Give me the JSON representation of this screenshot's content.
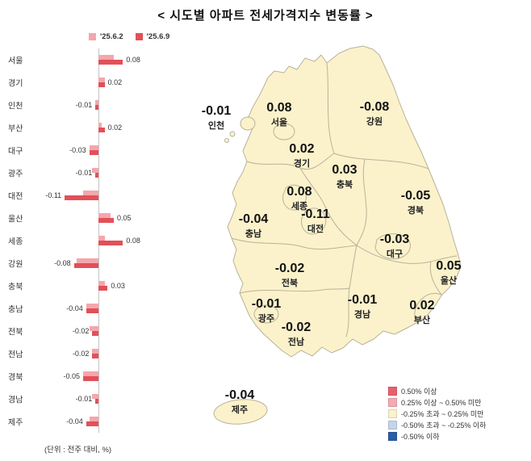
{
  "title": "< 시도별 아파트 전세가격지수 변동률 >",
  "unit_note": "(단위 : 전주 대비, %)",
  "legend": {
    "prev_label": "'25.6.2",
    "curr_label": "'25.6.9"
  },
  "colors": {
    "prev": "#f5a6ab",
    "curr": "#e25058",
    "map_fill": "#fbf2cb",
    "map_stroke": "#b8b299"
  },
  "chart_data": {
    "type": "bar",
    "orientation": "horizontal",
    "unit": "%",
    "title": "시도별 아파트 전세가격지수 변동률",
    "categories": [
      "서울",
      "경기",
      "인천",
      "부산",
      "대구",
      "광주",
      "대전",
      "울산",
      "세종",
      "강원",
      "충북",
      "충남",
      "전북",
      "전남",
      "경북",
      "경남",
      "제주"
    ],
    "series": [
      {
        "name": "'25.6.2",
        "values": [
          0.05,
          0.02,
          -0.01,
          0.01,
          -0.03,
          -0.02,
          -0.05,
          0.04,
          0.02,
          -0.07,
          0.02,
          -0.04,
          -0.03,
          -0.02,
          -0.05,
          -0.02,
          -0.03
        ]
      },
      {
        "name": "'25.6.9",
        "values": [
          0.08,
          0.02,
          -0.01,
          0.02,
          -0.03,
          -0.01,
          -0.11,
          0.05,
          0.08,
          -0.08,
          0.03,
          -0.04,
          -0.02,
          -0.02,
          -0.05,
          -0.01,
          -0.04
        ]
      }
    ],
    "value_labels": [
      "0.08",
      "0.02",
      "-0.01",
      "0.02",
      "-0.03",
      "-0.01",
      "-0.11",
      "0.05",
      "0.08",
      "-0.08",
      "0.03",
      "-0.04",
      "-0.02",
      "-0.02",
      "-0.05",
      "-0.01",
      "-0.04"
    ]
  },
  "map": {
    "regions": [
      {
        "name": "인천",
        "value": "-0.01"
      },
      {
        "name": "서울",
        "value": "0.08"
      },
      {
        "name": "강원",
        "value": "-0.08"
      },
      {
        "name": "경기",
        "value": "0.02"
      },
      {
        "name": "충북",
        "value": "0.03"
      },
      {
        "name": "세종",
        "value": "0.08"
      },
      {
        "name": "대전",
        "value": "-0.11"
      },
      {
        "name": "충남",
        "value": "-0.04"
      },
      {
        "name": "경북",
        "value": "-0.05"
      },
      {
        "name": "대구",
        "value": "-0.03"
      },
      {
        "name": "전북",
        "value": "-0.02"
      },
      {
        "name": "울산",
        "value": "0.05"
      },
      {
        "name": "광주",
        "value": "-0.01"
      },
      {
        "name": "경남",
        "value": "-0.01"
      },
      {
        "name": "부산",
        "value": "0.02"
      },
      {
        "name": "전남",
        "value": "-0.02"
      },
      {
        "name": "제주",
        "value": "-0.04"
      }
    ],
    "legend": [
      {
        "label": "0.50% 이상",
        "color": "#e9606a"
      },
      {
        "label": "0.25% 이상 ~ 0.50% 미만",
        "color": "#f5aab1"
      },
      {
        "label": "-0.25% 초과 ~ 0.25% 미만",
        "color": "#fbf2cb"
      },
      {
        "label": "-0.50% 초과 ~ -0.25% 이하",
        "color": "#c5d4ea"
      },
      {
        "label": "-0.50% 이하",
        "color": "#2b5ca8"
      }
    ]
  }
}
